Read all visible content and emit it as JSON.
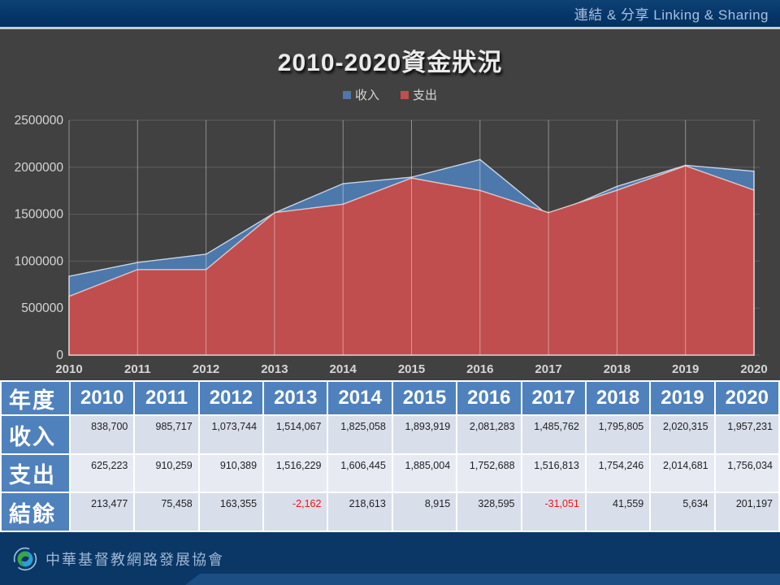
{
  "topbar": {
    "title": "連結 & 分享 Linking & Sharing"
  },
  "chart": {
    "title": "2010-2020資金狀況"
  },
  "chart_data": {
    "type": "area",
    "title": "2010-2020資金狀況",
    "categories": [
      "2010",
      "2011",
      "2012",
      "2013",
      "2014",
      "2015",
      "2016",
      "2017",
      "2018",
      "2019",
      "2020"
    ],
    "series": [
      {
        "name": "收入",
        "color": "#4d78ab",
        "stroke": "#c7d3e5",
        "values": [
          838700,
          985717,
          1073744,
          1514067,
          1825058,
          1893919,
          2081283,
          1485762,
          1795805,
          2020315,
          1957231
        ]
      },
      {
        "name": "支出",
        "color": "#c04e4e",
        "stroke": "#e0c6c6",
        "values": [
          625223,
          910259,
          910389,
          1516229,
          1606445,
          1885004,
          1752688,
          1516813,
          1754246,
          2014681,
          1756034
        ]
      }
    ],
    "ylim": [
      0,
      2500000
    ],
    "ytick_interval": 500000,
    "yticks": [
      "0",
      "500000",
      "1000000",
      "1500000",
      "2000000",
      "2500000"
    ],
    "grid": true,
    "legend_position": "top",
    "colors": {
      "background": "#414141",
      "gridline": "#5d5d5d",
      "axis_text": "#d6d6d6",
      "vertical_gridline": "rgba(255,255,255,0.42)"
    }
  },
  "table": {
    "corner_label": "年度",
    "years": [
      "2010",
      "2011",
      "2012",
      "2013",
      "2014",
      "2015",
      "2016",
      "2017",
      "2018",
      "2019",
      "2020"
    ],
    "rows": [
      {
        "label": "收入",
        "values": [
          "838,700",
          "985,717",
          "1,073,744",
          "1,514,067",
          "1,825,058",
          "1,893,919",
          "2,081,283",
          "1,485,762",
          "1,795,805",
          "2,020,315",
          "1,957,231"
        ]
      },
      {
        "label": "支出",
        "values": [
          "625,223",
          "910,259",
          "910,389",
          "1,516,229",
          "1,606,445",
          "1,885,004",
          "1,752,688",
          "1,516,813",
          "1,754,246",
          "2,014,681",
          "1,756,034"
        ]
      },
      {
        "label": "結餘",
        "values": [
          "213,477",
          "75,458",
          "163,355",
          "-2,162",
          "218,613",
          "8,915",
          "328,595",
          "-31,051",
          "41,559",
          "5,634",
          "201,197"
        ]
      }
    ],
    "negative_color": "#f01414"
  },
  "footer": {
    "org_name": "中華基督教網路發展協會"
  }
}
